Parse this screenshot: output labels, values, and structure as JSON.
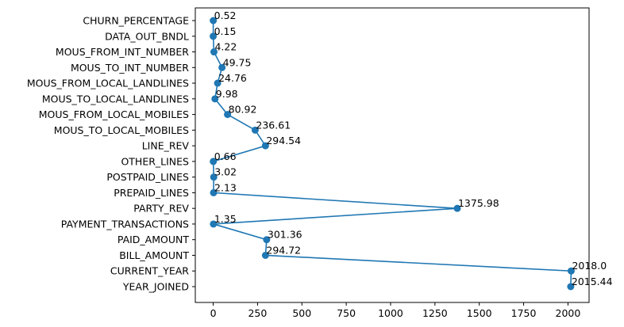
{
  "chart_data": {
    "type": "line",
    "orientation": "horizontal",
    "categories": [
      "CHURN_PERCENTAGE",
      "DATA_OUT_BNDL",
      "MOUS_FROM_INT_NUMBER",
      "MOUS_TO_INT_NUMBER",
      "MOUS_FROM_LOCAL_LANDLINES",
      "MOUS_TO_LOCAL_LANDLINES",
      "MOUS_FROM_LOCAL_MOBILES",
      "MOUS_TO_LOCAL_MOBILES",
      "LINE_REV",
      "OTHER_LINES",
      "POSTPAID_LINES",
      "PREPAID_LINES",
      "PARTY_REV",
      "PAYMENT_TRANSACTIONS",
      "PAID_AMOUNT",
      "BILL_AMOUNT",
      "CURRENT_YEAR",
      "YEAR_JOINED"
    ],
    "values": [
      0.52,
      0.15,
      4.22,
      49.75,
      24.76,
      9.98,
      80.92,
      236.61,
      294.54,
      0.66,
      3.02,
      2.13,
      1375.98,
      1.35,
      301.36,
      294.72,
      2018.0,
      2015.44
    ],
    "data_labels": [
      "0.52",
      "0.15",
      "4.22",
      "49.75",
      "24.76",
      "9.98",
      "80.92",
      "236.61",
      "294.54",
      "0.66",
      "3.02",
      "2.13",
      "1375.98",
      "1.35",
      "301.36",
      "294.72",
      "2018.0",
      "2015.44"
    ],
    "xticks": [
      "0",
      "250",
      "500",
      "750",
      "1000",
      "1250",
      "1500",
      "1750",
      "2000"
    ],
    "xlim": [
      -100.9,
      2118.9
    ],
    "title": "",
    "xlabel": "",
    "ylabel": "",
    "grid": false,
    "legend": "none",
    "color": "#1f77b4"
  }
}
